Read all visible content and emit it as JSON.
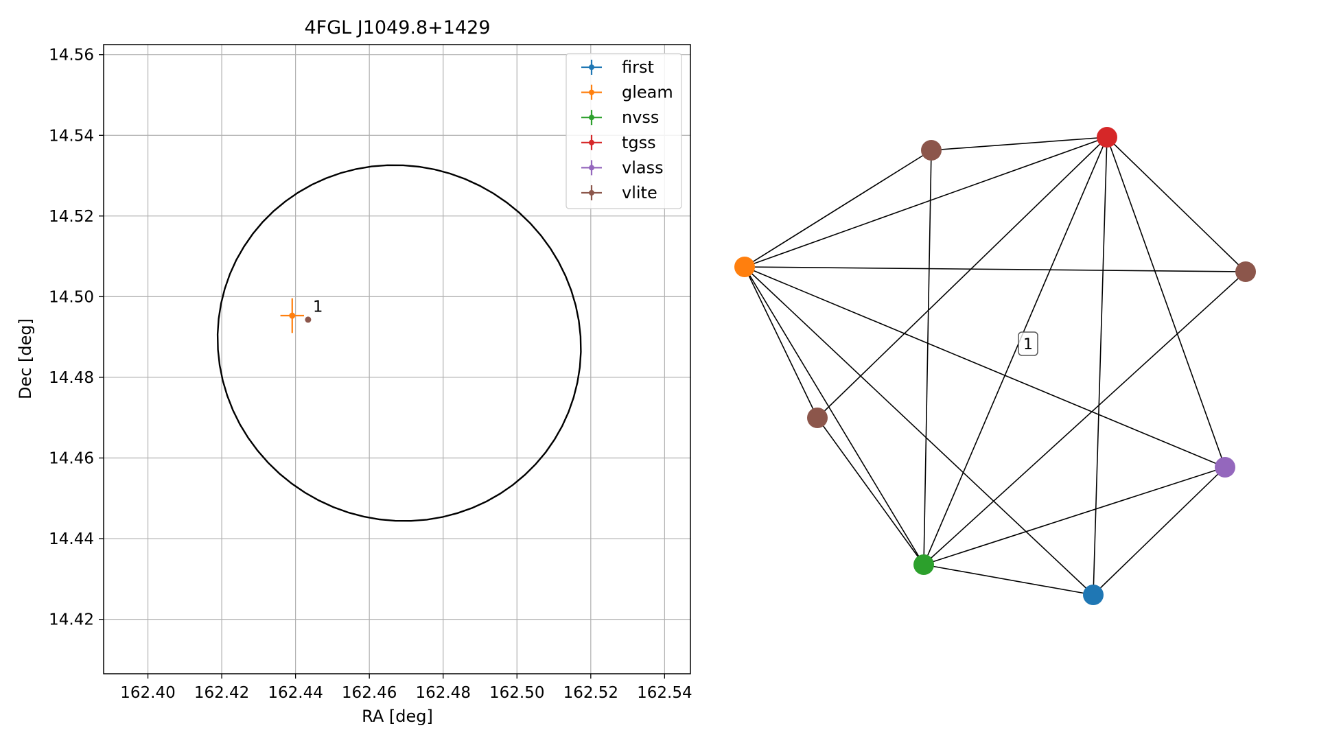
{
  "chart_data": [
    {
      "type": "scatter",
      "title": "4FGL J1049.8+1429",
      "xlabel": "RA [deg]",
      "ylabel": "Dec [deg]",
      "xlim": [
        162.388,
        162.547
      ],
      "ylim": [
        14.4065,
        14.5625
      ],
      "xticks": [
        162.4,
        162.42,
        162.44,
        162.46,
        162.48,
        162.5,
        162.52,
        162.54
      ],
      "xtick_labels": [
        "162.40",
        "162.42",
        "162.44",
        "162.46",
        "162.48",
        "162.50",
        "162.52",
        "162.54"
      ],
      "yticks": [
        14.42,
        14.44,
        14.46,
        14.48,
        14.5,
        14.52,
        14.54,
        14.56
      ],
      "ytick_labels": [
        "14.42",
        "14.44",
        "14.46",
        "14.48",
        "14.50",
        "14.52",
        "14.54",
        "14.56"
      ],
      "grid": true,
      "legend_position": "upper-right",
      "ellipse": {
        "center": [
          162.4681,
          14.4885
        ],
        "width": 0.0986,
        "height": 0.0881,
        "angle_deg": -7,
        "color": "#000000"
      },
      "series": [
        {
          "name": "first",
          "color": "#1f77b4",
          "points": []
        },
        {
          "name": "gleam",
          "color": "#ff7f0e",
          "points": [
            {
              "x": 162.4391,
              "y": 14.4953,
              "xerr": 0.0032,
              "yerr": 0.0043
            }
          ]
        },
        {
          "name": "nvss",
          "color": "#2ca02c",
          "points": []
        },
        {
          "name": "tgss",
          "color": "#d62728",
          "points": []
        },
        {
          "name": "vlass",
          "color": "#9467bd",
          "points": []
        },
        {
          "name": "vlite",
          "color": "#8c564b",
          "points": [
            {
              "x": 162.4434,
              "y": 14.4943,
              "xerr": 0.0004,
              "yerr": 0.0004
            }
          ]
        }
      ],
      "annotations": [
        {
          "text": "1",
          "x": 162.4447,
          "y": 14.4962
        }
      ]
    },
    {
      "type": "network",
      "label": "1",
      "nodes": [
        {
          "id": "vlite_a",
          "color": "#8c564b"
        },
        {
          "id": "tgss",
          "color": "#d62728"
        },
        {
          "id": "gleam",
          "color": "#ff7f0e"
        },
        {
          "id": "vlite_b",
          "color": "#8c564b"
        },
        {
          "id": "vlite_c",
          "color": "#8c564b"
        },
        {
          "id": "vlass",
          "color": "#9467bd"
        },
        {
          "id": "nvss",
          "color": "#2ca02c"
        },
        {
          "id": "first",
          "color": "#1f77b4"
        }
      ],
      "edges": [
        [
          "gleam",
          "vlite_a"
        ],
        [
          "gleam",
          "tgss"
        ],
        [
          "gleam",
          "vlite_b"
        ],
        [
          "gleam",
          "vlite_c"
        ],
        [
          "gleam",
          "nvss"
        ],
        [
          "gleam",
          "first"
        ],
        [
          "gleam",
          "vlass"
        ],
        [
          "vlite_a",
          "tgss"
        ],
        [
          "vlite_a",
          "nvss"
        ],
        [
          "tgss",
          "vlite_b"
        ],
        [
          "tgss",
          "vlite_c"
        ],
        [
          "tgss",
          "nvss"
        ],
        [
          "tgss",
          "first"
        ],
        [
          "tgss",
          "vlass"
        ],
        [
          "vlite_b",
          "nvss"
        ],
        [
          "vlite_c",
          "nvss"
        ],
        [
          "vlass",
          "nvss"
        ],
        [
          "vlass",
          "first"
        ],
        [
          "nvss",
          "first"
        ]
      ]
    }
  ]
}
